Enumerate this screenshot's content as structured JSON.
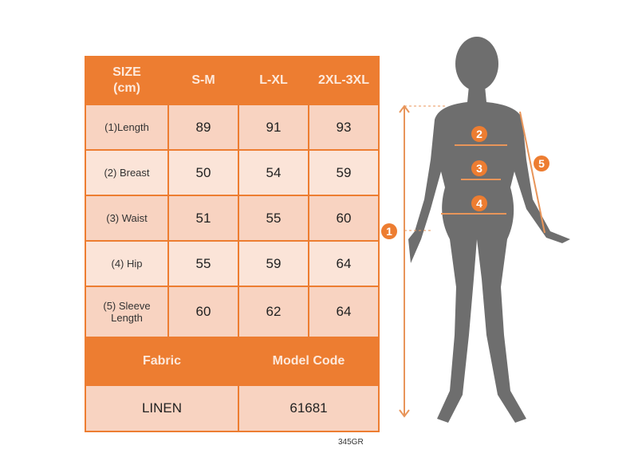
{
  "table": {
    "header": [
      "SIZE\n(cm)",
      "S-M",
      "L-XL",
      "2XL-3XL"
    ],
    "rows": [
      {
        "label": "(1)Length",
        "values": [
          "89",
          "91",
          "93"
        ]
      },
      {
        "label": "(2) Breast",
        "values": [
          "50",
          "54",
          "59"
        ]
      },
      {
        "label": "(3) Waist",
        "values": [
          "51",
          "55",
          "60"
        ]
      },
      {
        "label": "(4) Hip",
        "values": [
          "55",
          "59",
          "64"
        ]
      },
      {
        "label": "(5) Sleeve Length",
        "values": [
          "60",
          "62",
          "64"
        ]
      }
    ],
    "fabric_label": "Fabric",
    "model_code_label": "Model Code",
    "fabric": "LINEN",
    "model_code": "61681"
  },
  "figure": {
    "markers": [
      "1",
      "2",
      "3",
      "4",
      "5"
    ],
    "silhouette_color": "#6e6e6e",
    "accent": "#ED7D31"
  },
  "footer_code": "345GR"
}
